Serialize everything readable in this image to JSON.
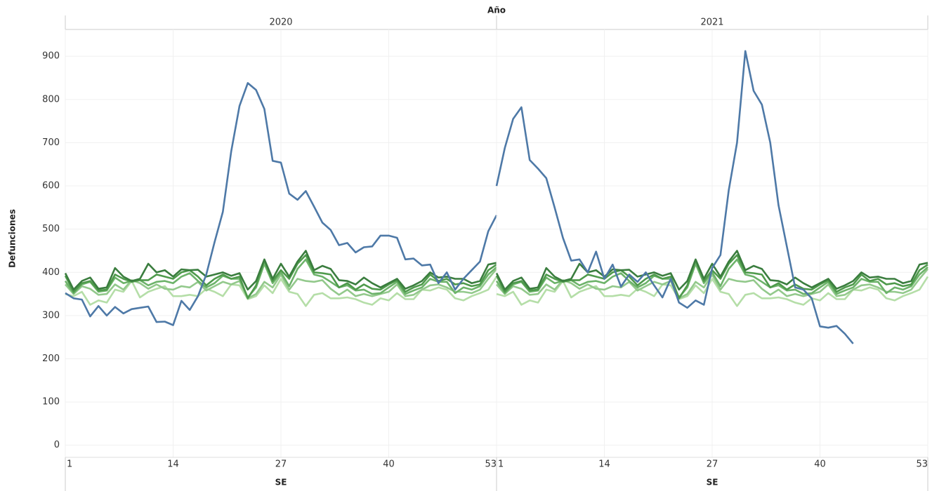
{
  "facet_title": "Año",
  "ylabel": "Defunciones",
  "chart_data": [
    {
      "type": "line",
      "title": "2020",
      "xlabel": "SE",
      "x": [
        1,
        2,
        3,
        4,
        5,
        6,
        7,
        8,
        9,
        10,
        11,
        12,
        13,
        14,
        15,
        16,
        17,
        18,
        19,
        20,
        21,
        22,
        23,
        24,
        25,
        26,
        27,
        28,
        29,
        30,
        31,
        32,
        33,
        34,
        35,
        36,
        37,
        38,
        39,
        40,
        41,
        42,
        43,
        44,
        45,
        46,
        47,
        48,
        49,
        50,
        51,
        52,
        53
      ],
      "xlim": [
        1,
        53
      ],
      "xticks": [
        1,
        14,
        27,
        40,
        53
      ],
      "ylim": [
        -28,
        962
      ],
      "yticks": [
        0,
        100,
        200,
        300,
        400,
        500,
        600,
        700,
        800,
        900
      ],
      "grid": true,
      "series": [
        {
          "color": "#b5dea8",
          "values": [
            350,
            345,
            355,
            325,
            335,
            330,
            360,
            355,
            380,
            342,
            355,
            362,
            368,
            345,
            345,
            348,
            345,
            362,
            355,
            345,
            372,
            370,
            338,
            345,
            370,
            352,
            385,
            355,
            350,
            322,
            348,
            352,
            340,
            340,
            342,
            338,
            330,
            325,
            340,
            335,
            352,
            338,
            338,
            360,
            358,
            365,
            360,
            340,
            335,
            345,
            352,
            360,
            390
          ]
        },
        {
          "color": "#93c98c",
          "values": [
            372,
            350,
            368,
            362,
            348,
            350,
            372,
            360,
            382,
            375,
            362,
            372,
            362,
            360,
            368,
            365,
            378,
            358,
            368,
            378,
            372,
            380,
            340,
            350,
            378,
            365,
            395,
            360,
            385,
            380,
            378,
            382,
            362,
            348,
            360,
            345,
            350,
            345,
            350,
            355,
            372,
            345,
            348,
            360,
            370,
            372,
            365,
            355,
            355,
            352,
            360,
            385,
            408
          ]
        },
        {
          "color": "#6db36a",
          "values": [
            380,
            352,
            372,
            378,
            355,
            358,
            388,
            375,
            380,
            382,
            370,
            378,
            380,
            375,
            390,
            398,
            380,
            365,
            375,
            392,
            385,
            385,
            342,
            365,
            420,
            375,
            400,
            368,
            408,
            430,
            395,
            390,
            378,
            365,
            370,
            358,
            360,
            350,
            352,
            365,
            378,
            350,
            358,
            365,
            385,
            378,
            378,
            352,
            365,
            360,
            368,
            395,
            412
          ]
        },
        {
          "color": "#4e9a4b",
          "values": [
            392,
            355,
            375,
            380,
            358,
            360,
            395,
            385,
            378,
            382,
            382,
            395,
            390,
            385,
            400,
            405,
            390,
            370,
            385,
            395,
            385,
            390,
            340,
            370,
            428,
            380,
            405,
            385,
            420,
            440,
            400,
            398,
            395,
            365,
            375,
            360,
            372,
            362,
            360,
            372,
            382,
            355,
            365,
            372,
            395,
            380,
            385,
            372,
            375,
            368,
            372,
            405,
            418
          ]
        },
        {
          "color": "#3a7d3e",
          "values": [
            398,
            360,
            380,
            388,
            362,
            365,
            410,
            390,
            380,
            385,
            420,
            400,
            405,
            390,
            407,
            405,
            406,
            390,
            395,
            400,
            392,
            398,
            360,
            380,
            430,
            385,
            420,
            390,
            425,
            450,
            405,
            415,
            408,
            382,
            380,
            372,
            388,
            375,
            365,
            375,
            385,
            362,
            370,
            380,
            400,
            388,
            390,
            385,
            385,
            375,
            380,
            418,
            422
          ]
        },
        {
          "color": "#4e79a7",
          "values": [
            352,
            340,
            337,
            298,
            322,
            300,
            320,
            305,
            315,
            318,
            321,
            285,
            286,
            278,
            334,
            313,
            345,
            395,
            470,
            540,
            680,
            785,
            838,
            822,
            778,
            658,
            654,
            582,
            568,
            588,
            552,
            515,
            498,
            463,
            468,
            446,
            458,
            460,
            485,
            485,
            480,
            430,
            432,
            416,
            418,
            375,
            400,
            360,
            385,
            405,
            425,
            495,
            532
          ]
        }
      ]
    },
    {
      "type": "line",
      "title": "2021",
      "xlabel": "SE",
      "x": [
        1,
        2,
        3,
        4,
        5,
        6,
        7,
        8,
        9,
        10,
        11,
        12,
        13,
        14,
        15,
        16,
        17,
        18,
        19,
        20,
        21,
        22,
        23,
        24,
        25,
        26,
        27,
        28,
        29,
        30,
        31,
        32,
        33,
        34,
        35,
        36,
        37,
        38,
        39,
        40,
        41,
        42,
        43,
        44,
        45,
        46,
        47,
        48,
        49,
        50,
        51,
        52,
        53
      ],
      "xlim": [
        1,
        53
      ],
      "xticks": [
        1,
        14,
        27,
        40,
        53
      ],
      "ylim": [
        -28,
        962
      ],
      "yticks": [
        0,
        100,
        200,
        300,
        400,
        500,
        600,
        700,
        800,
        900
      ],
      "grid": true,
      "series": [
        {
          "color": "#b5dea8",
          "values": [
            350,
            345,
            355,
            325,
            335,
            330,
            360,
            355,
            380,
            342,
            355,
            362,
            368,
            345,
            345,
            348,
            345,
            362,
            355,
            345,
            372,
            370,
            338,
            345,
            370,
            352,
            385,
            355,
            350,
            322,
            348,
            352,
            340,
            340,
            342,
            338,
            330,
            325,
            340,
            335,
            352,
            338,
            338,
            360,
            358,
            365,
            360,
            340,
            335,
            345,
            352,
            360,
            390
          ]
        },
        {
          "color": "#93c98c",
          "values": [
            372,
            350,
            368,
            362,
            348,
            350,
            372,
            360,
            382,
            375,
            362,
            372,
            362,
            360,
            368,
            365,
            378,
            358,
            368,
            378,
            372,
            380,
            340,
            350,
            378,
            365,
            395,
            360,
            385,
            380,
            378,
            382,
            362,
            348,
            360,
            345,
            350,
            345,
            350,
            355,
            372,
            345,
            348,
            360,
            370,
            372,
            365,
            355,
            355,
            352,
            360,
            385,
            408
          ]
        },
        {
          "color": "#6db36a",
          "values": [
            380,
            352,
            372,
            378,
            355,
            358,
            388,
            375,
            380,
            382,
            370,
            378,
            380,
            375,
            390,
            398,
            380,
            365,
            375,
            392,
            385,
            385,
            342,
            365,
            420,
            375,
            400,
            368,
            408,
            430,
            395,
            390,
            378,
            365,
            370,
            358,
            360,
            350,
            352,
            365,
            378,
            350,
            358,
            365,
            385,
            378,
            378,
            352,
            365,
            360,
            368,
            395,
            412
          ]
        },
        {
          "color": "#4e9a4b",
          "values": [
            392,
            355,
            375,
            380,
            358,
            360,
            395,
            385,
            378,
            382,
            382,
            395,
            390,
            385,
            400,
            405,
            390,
            370,
            385,
            395,
            385,
            390,
            340,
            370,
            428,
            380,
            405,
            385,
            420,
            440,
            400,
            398,
            395,
            365,
            375,
            360,
            372,
            362,
            360,
            372,
            382,
            355,
            365,
            372,
            395,
            380,
            385,
            372,
            375,
            368,
            372,
            405,
            418
          ]
        },
        {
          "color": "#3a7d3e",
          "values": [
            398,
            360,
            380,
            388,
            362,
            365,
            410,
            390,
            380,
            385,
            420,
            400,
            405,
            390,
            407,
            405,
            406,
            390,
            395,
            400,
            392,
            398,
            360,
            380,
            430,
            385,
            420,
            390,
            425,
            450,
            405,
            415,
            408,
            382,
            380,
            372,
            388,
            375,
            365,
            375,
            385,
            362,
            370,
            380,
            400,
            388,
            390,
            385,
            385,
            375,
            380,
            418,
            422
          ]
        },
        {
          "color": "#4e79a7",
          "values": [
            600,
            688,
            755,
            782,
            660,
            640,
            618,
            550,
            480,
            427,
            430,
            400,
            448,
            385,
            418,
            367,
            395,
            378,
            400,
            370,
            342,
            385,
            330,
            318,
            335,
            325,
            410,
            440,
            590,
            700,
            912,
            820,
            788,
            700,
            555,
            460,
            365,
            360,
            340,
            275,
            272,
            276,
            258,
            235,
            null,
            null,
            null,
            null,
            null,
            null,
            null,
            null,
            null
          ]
        }
      ]
    }
  ]
}
